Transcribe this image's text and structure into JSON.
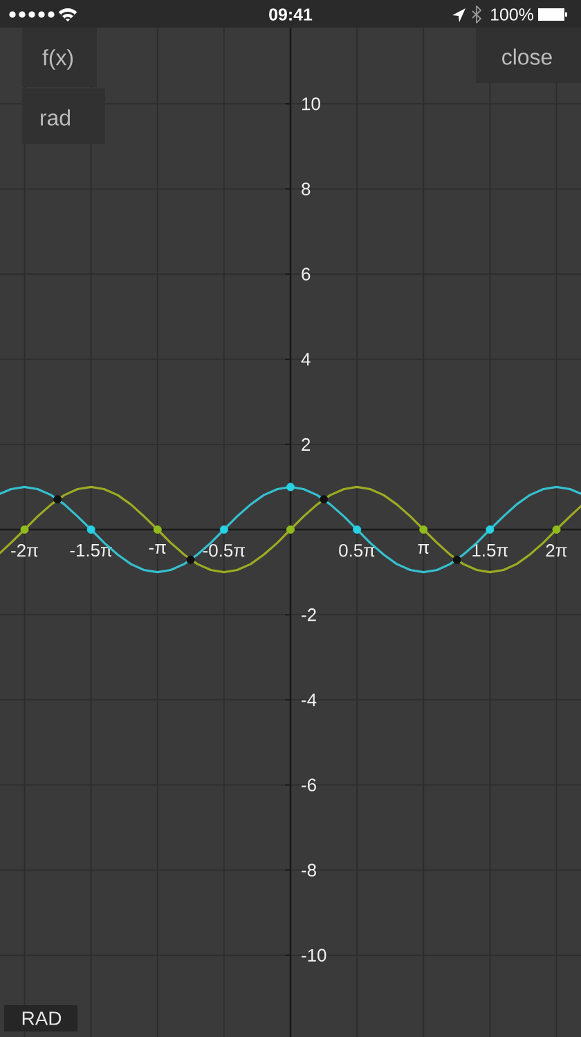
{
  "chart_data": {
    "type": "line",
    "x": [
      -6.86,
      -6.6,
      -6.28,
      -5.97,
      -5.65,
      -5.34,
      -5.03,
      -4.71,
      -4.4,
      -4.08,
      -3.77,
      -3.46,
      -3.14,
      -2.83,
      -2.51,
      -2.2,
      -1.88,
      -1.57,
      -1.26,
      -0.94,
      -0.63,
      -0.31,
      0,
      0.31,
      0.63,
      0.94,
      1.26,
      1.57,
      1.88,
      2.2,
      2.51,
      2.83,
      3.14,
      3.46,
      3.77,
      4.08,
      4.4,
      4.71,
      5.03,
      5.34,
      5.65,
      5.97,
      6.28,
      6.6,
      6.86
    ],
    "series": [
      {
        "color": "#35c0cf",
        "values": [
          0.84,
          0.95,
          1,
          0.95,
          0.81,
          0.59,
          0.31,
          0,
          -0.31,
          -0.59,
          -0.81,
          -0.95,
          -1,
          -0.95,
          -0.81,
          -0.59,
          -0.31,
          0,
          0.31,
          0.59,
          0.81,
          0.95,
          1,
          0.95,
          0.81,
          0.59,
          0.31,
          0,
          -0.31,
          -0.59,
          -0.81,
          -0.95,
          -1,
          -0.95,
          -0.81,
          -0.59,
          -0.31,
          0,
          0.31,
          0.59,
          0.81,
          0.95,
          1,
          0.95,
          0.84
        ]
      },
      {
        "color": "#9cab22",
        "values": [
          -0.55,
          -0.31,
          0,
          0.31,
          0.59,
          0.81,
          0.95,
          1,
          0.95,
          0.81,
          0.59,
          0.31,
          0,
          -0.31,
          -0.59,
          -0.81,
          -0.95,
          -1,
          -0.95,
          -0.81,
          -0.59,
          -0.31,
          0,
          0.31,
          0.59,
          0.81,
          0.95,
          1,
          0.95,
          0.81,
          0.59,
          0.31,
          0,
          -0.31,
          -0.59,
          -0.81,
          -0.95,
          -1,
          -0.95,
          -0.81,
          -0.59,
          -0.31,
          0,
          0.31,
          0.55
        ]
      },
      {
        "type": "scatter",
        "marker": "circle",
        "color": "#26d2e4",
        "x": [
          -4.71,
          -1.57,
          0,
          1.57,
          4.71
        ],
        "values": [
          0,
          0,
          1,
          0,
          0
        ]
      },
      {
        "type": "scatter",
        "marker": "circle",
        "color": "#8fbb1c",
        "x": [
          -6.28,
          -3.14,
          0,
          3.14,
          6.28
        ],
        "values": [
          0,
          0,
          0,
          0,
          0
        ]
      },
      {
        "type": "scatter",
        "marker": "circle",
        "color": "#111111",
        "x": [
          -5.5,
          -2.36,
          0.79,
          3.93
        ],
        "values": [
          0.71,
          -0.71,
          0.71,
          -0.71
        ]
      }
    ],
    "xlim": [
      -6.86,
      6.86
    ],
    "ylim": [
      -11.92,
      11.79
    ],
    "xticks": [
      {
        "value": -6.28,
        "label": "-2π"
      },
      {
        "value": -4.71,
        "label": "-1.5π"
      },
      {
        "value": -3.14,
        "label": "-π"
      },
      {
        "value": -1.57,
        "label": "-0.5π"
      },
      {
        "value": 1.57,
        "label": "0.5π"
      },
      {
        "value": 3.14,
        "label": "π"
      },
      {
        "value": 4.71,
        "label": "1.5π"
      },
      {
        "value": 6.28,
        "label": "2π"
      }
    ],
    "yticks": [
      -10,
      -8,
      -6,
      -4,
      -2,
      2,
      4,
      6,
      8,
      10
    ],
    "grid": true,
    "annotations": [
      "09:41",
      "100%",
      "f(x)",
      "rad",
      "close",
      "RAD"
    ]
  }
}
